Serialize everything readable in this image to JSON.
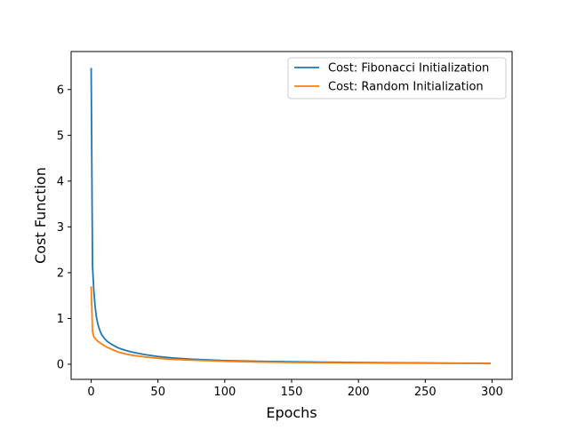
{
  "chart_data": {
    "type": "line",
    "title": "",
    "xlabel": "Epochs",
    "ylabel": "Cost Function",
    "xlim": [
      -15,
      315
    ],
    "ylim": [
      -0.33,
      6.83
    ],
    "xticks": [
      0,
      50,
      100,
      150,
      200,
      250,
      300
    ],
    "yticks": [
      0,
      1,
      2,
      3,
      4,
      5,
      6
    ],
    "grid": false,
    "legend_position": "top-right",
    "series": [
      {
        "name": "Cost: Fibonacci Initialization",
        "color": "#1f77b4",
        "x": [
          0,
          1,
          2,
          3,
          4,
          5,
          6,
          7,
          8,
          10,
          12,
          15,
          20,
          25,
          30,
          40,
          50,
          60,
          75,
          100,
          125,
          150,
          175,
          200,
          225,
          250,
          275,
          299
        ],
        "y": [
          6.47,
          2.15,
          1.6,
          1.25,
          1.02,
          0.88,
          0.78,
          0.7,
          0.64,
          0.56,
          0.5,
          0.44,
          0.36,
          0.31,
          0.27,
          0.21,
          0.17,
          0.14,
          0.11,
          0.08,
          0.065,
          0.055,
          0.045,
          0.038,
          0.033,
          0.028,
          0.024,
          0.02
        ]
      },
      {
        "name": "Cost: Random Initialization",
        "color": "#ff7f0e",
        "x": [
          0,
          1,
          2,
          3,
          4,
          5,
          6,
          8,
          10,
          12,
          15,
          20,
          25,
          30,
          40,
          50,
          60,
          75,
          100,
          125,
          150,
          175,
          200,
          225,
          250,
          275,
          299
        ],
        "y": [
          1.7,
          0.72,
          0.6,
          0.56,
          0.53,
          0.5,
          0.48,
          0.44,
          0.4,
          0.37,
          0.33,
          0.27,
          0.23,
          0.2,
          0.16,
          0.13,
          0.11,
          0.09,
          0.065,
          0.05,
          0.04,
          0.034,
          0.029,
          0.025,
          0.022,
          0.019,
          0.016
        ]
      }
    ]
  }
}
